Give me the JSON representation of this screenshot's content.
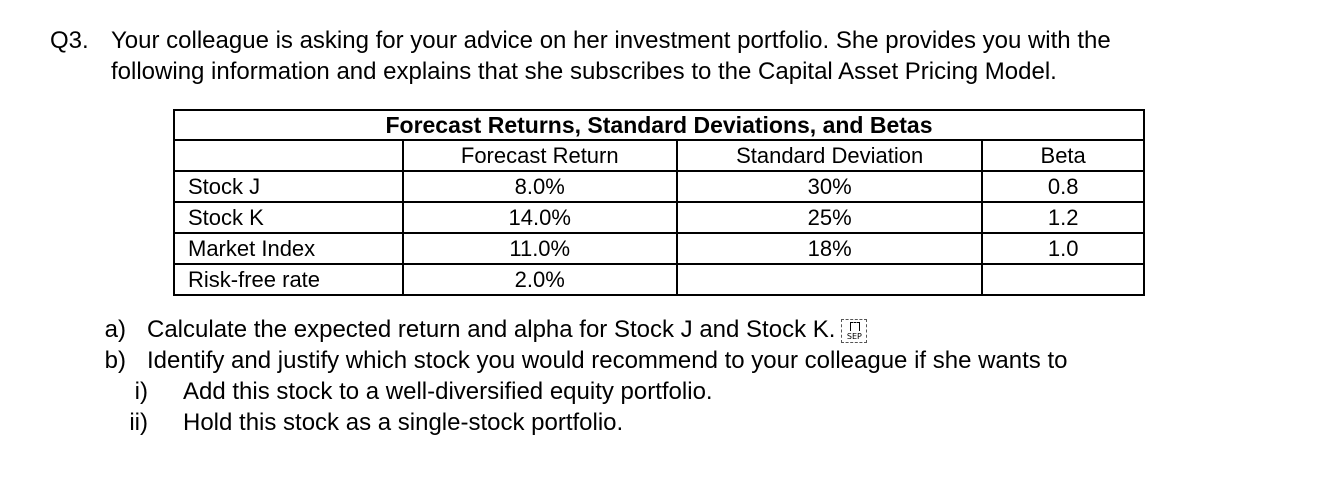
{
  "question": {
    "number": "Q3.",
    "line1": "Your colleague is asking for your advice on her investment portfolio. She provides you with the",
    "line2": "following information and explains that she subscribes to the Capital Asset Pricing Model."
  },
  "table": {
    "title": "Forecast Returns, Standard Deviations, and Betas",
    "headers": [
      "",
      "Forecast Return",
      "Standard Deviation",
      "Beta"
    ],
    "rows": [
      {
        "name": "Stock J",
        "forecast_return": "8.0%",
        "std_dev": "30%",
        "beta": "0.8"
      },
      {
        "name": "Stock K",
        "forecast_return": "14.0%",
        "std_dev": "25%",
        "beta": "1.2"
      },
      {
        "name": "Market Index",
        "forecast_return": "11.0%",
        "std_dev": "18%",
        "beta": "1.0"
      },
      {
        "name": "Risk-free rate",
        "forecast_return": "2.0%",
        "std_dev": "",
        "beta": ""
      }
    ]
  },
  "parts": {
    "a": {
      "marker": "a)",
      "text": "Calculate the expected return and alpha for Stock J and Stock K.",
      "icon": "sep-icon",
      "icon_label": "SEP"
    },
    "b": {
      "marker": "b)",
      "text": "Identify and justify which stock you would recommend to your colleague if she wants to"
    },
    "b_i": {
      "marker": "i)",
      "text": "Add this stock to a well-diversified equity portfolio."
    },
    "b_ii": {
      "marker": "ii)",
      "text": "Hold this stock as a single-stock portfolio."
    }
  }
}
